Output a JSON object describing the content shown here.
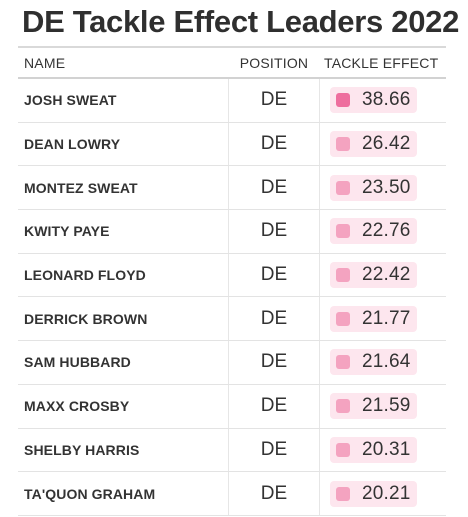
{
  "title": "DE Tackle Effect Leaders 2022",
  "columns": {
    "name": "NAME",
    "position": "POSITION",
    "tackle_effect": "TACKLE EFFECT"
  },
  "colors": {
    "highlight_pill_bg": "#fde6ee",
    "swatch_top": "#ee6e9e",
    "swatch_default": "#f4a3c0"
  },
  "rows": [
    {
      "name": "JOSH SWEAT",
      "position": "DE",
      "tackle_effect": "38.66"
    },
    {
      "name": "DEAN LOWRY",
      "position": "DE",
      "tackle_effect": "26.42"
    },
    {
      "name": "MONTEZ SWEAT",
      "position": "DE",
      "tackle_effect": "23.50"
    },
    {
      "name": "KWITY PAYE",
      "position": "DE",
      "tackle_effect": "22.76"
    },
    {
      "name": "LEONARD FLOYD",
      "position": "DE",
      "tackle_effect": "22.42"
    },
    {
      "name": "DERRICK BROWN",
      "position": "DE",
      "tackle_effect": "21.77"
    },
    {
      "name": "SAM HUBBARD",
      "position": "DE",
      "tackle_effect": "21.64"
    },
    {
      "name": "MAXX CROSBY",
      "position": "DE",
      "tackle_effect": "21.59"
    },
    {
      "name": "SHELBY HARRIS",
      "position": "DE",
      "tackle_effect": "20.31"
    },
    {
      "name": "TA'QUON GRAHAM",
      "position": "DE",
      "tackle_effect": "20.21"
    }
  ]
}
